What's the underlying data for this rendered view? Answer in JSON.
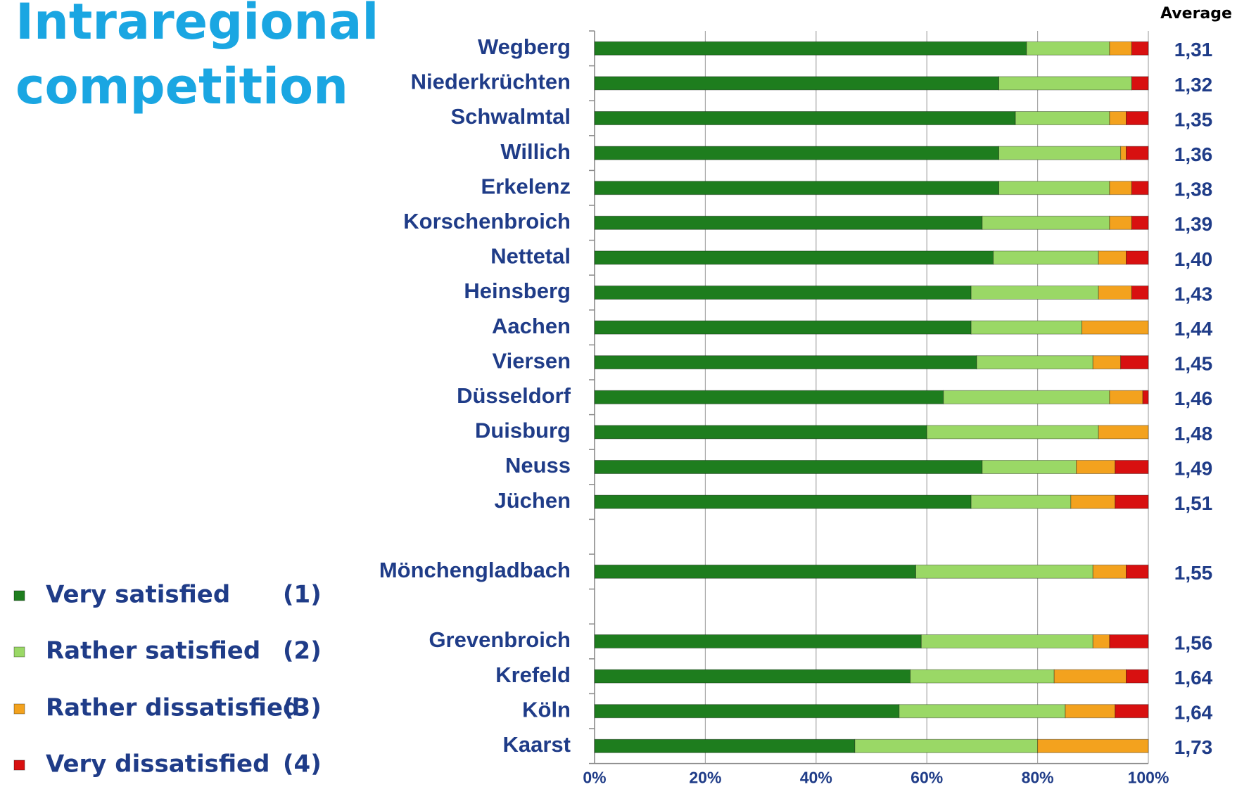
{
  "chart_data": {
    "type": "stacked_bar_horizontal",
    "title": [
      "Intraregional",
      "competition"
    ],
    "categories": [
      "Wegberg",
      "Niederkrüchten",
      "Schwalmtal",
      "Willich",
      "Erkelenz",
      "Korschenbroich",
      "Nettetal",
      "Heinsberg",
      "Aachen",
      "Viersen",
      "Düsseldorf",
      "Duisburg",
      "Neuss",
      "Jüchen",
      null,
      "Mönchengladbach",
      null,
      "Grevenbroich",
      "Krefeld",
      "Köln",
      "Kaarst"
    ],
    "series": [
      {
        "name": "Very satisfied",
        "code": "(1)",
        "color": "#1e7d1e",
        "values": [
          78,
          73,
          76,
          73,
          73,
          70,
          72,
          68,
          68,
          69,
          63,
          60,
          70,
          68,
          null,
          58,
          null,
          59,
          57,
          55,
          47
        ]
      },
      {
        "name": "Rather satisfied",
        "code": "(2)",
        "color": "#9ad866",
        "values": [
          15,
          24,
          17,
          22,
          20,
          23,
          19,
          23,
          20,
          21,
          30,
          31,
          17,
          18,
          null,
          32,
          null,
          31,
          26,
          30,
          33
        ]
      },
      {
        "name": "Rather dissatisfied",
        "code": "(3)",
        "color": "#f3a21e",
        "values": [
          4,
          0,
          3,
          1,
          4,
          4,
          5,
          6,
          12,
          5,
          6,
          9,
          7,
          8,
          null,
          6,
          null,
          3,
          13,
          9,
          20
        ]
      },
      {
        "name": "Very dissatisfied",
        "code": "(4)",
        "color": "#d81010",
        "values": [
          3,
          3,
          4,
          4,
          3,
          3,
          4,
          3,
          0,
          5,
          1,
          0,
          6,
          6,
          null,
          4,
          null,
          7,
          4,
          6,
          0
        ]
      }
    ],
    "averages": {
      "title": "Average",
      "values": [
        1.31,
        1.32,
        1.35,
        1.36,
        1.38,
        1.39,
        1.4,
        1.43,
        1.44,
        1.45,
        1.46,
        1.48,
        1.49,
        1.51,
        null,
        1.55,
        null,
        1.56,
        1.64,
        1.64,
        1.73
      ],
      "value_labels": [
        "1,31",
        "1,32",
        "1,35",
        "1,36",
        "1,38",
        "1,39",
        "1,40",
        "1,43",
        "1,44",
        "1,45",
        "1,46",
        "1,48",
        "1,49",
        "1,51",
        null,
        "1,55",
        null,
        "1,56",
        "1,64",
        "1,64",
        "1,73"
      ]
    },
    "xlim": [
      0,
      100
    ],
    "xticks": [
      {
        "value": 0,
        "label": "0%"
      },
      {
        "value": 20,
        "label": "20%"
      },
      {
        "value": 40,
        "label": "40%"
      },
      {
        "value": 60,
        "label": "60%"
      },
      {
        "value": 80,
        "label": "80%"
      },
      {
        "value": 100,
        "label": "100%"
      }
    ],
    "grid": true
  }
}
